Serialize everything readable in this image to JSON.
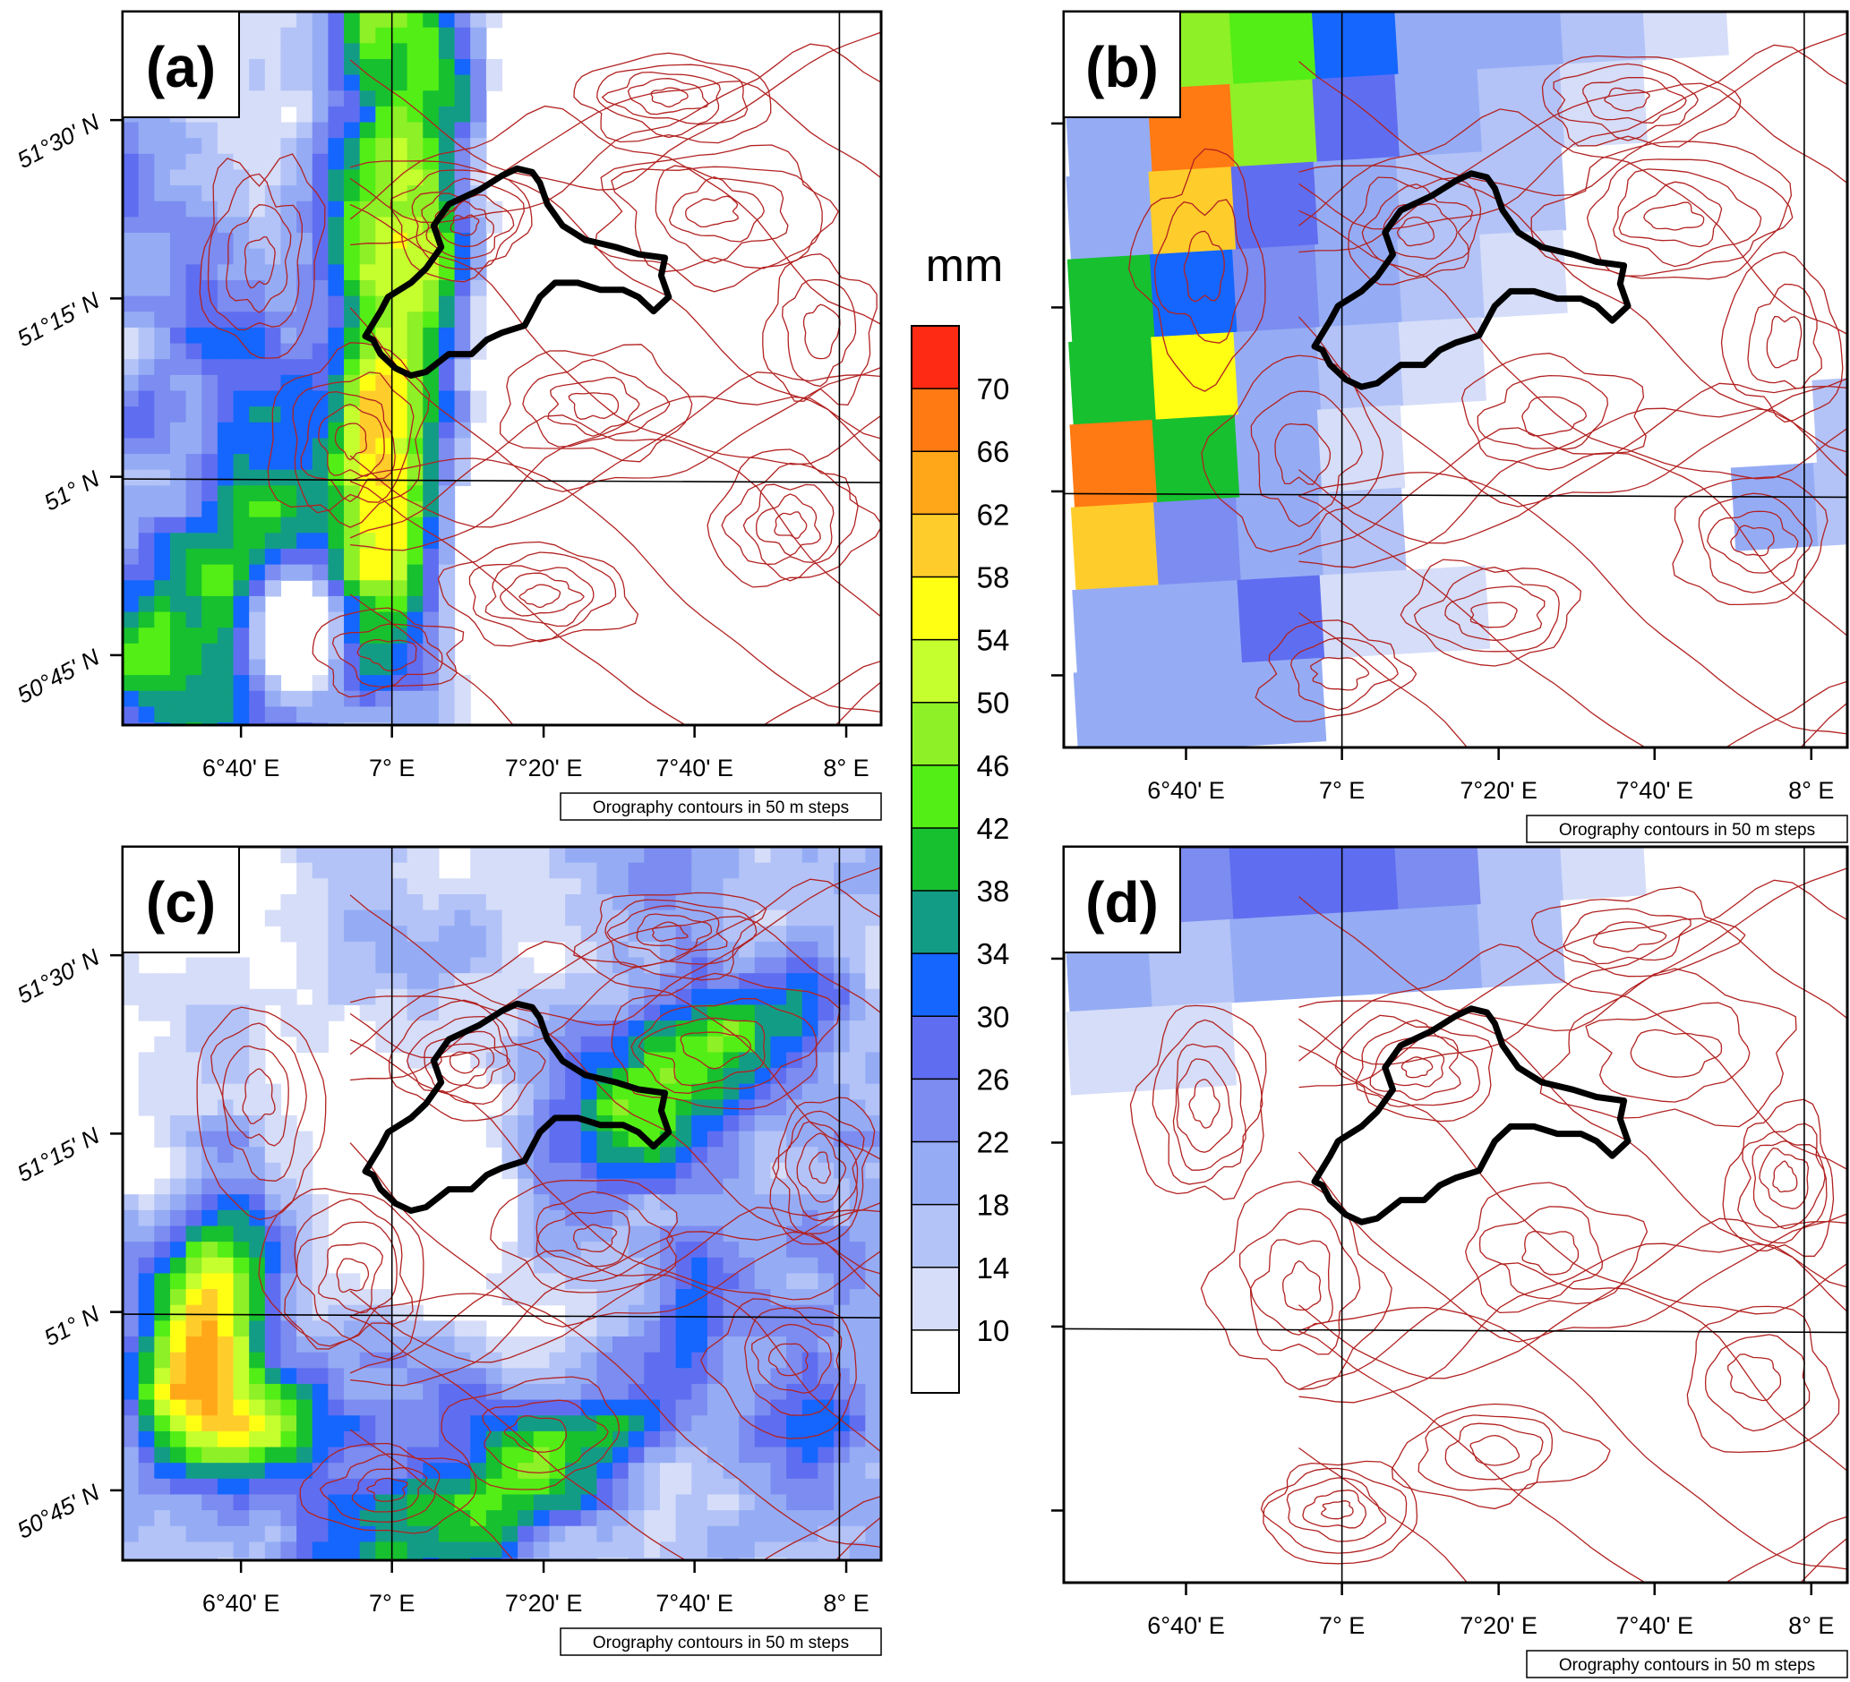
{
  "colorbar": {
    "unit": "mm",
    "levels": [
      "70",
      "66",
      "62",
      "58",
      "54",
      "50",
      "46",
      "42",
      "38",
      "34",
      "30",
      "26",
      "22",
      "18",
      "14",
      "10"
    ],
    "colors": [
      "#ff2a13",
      "#ff7a12",
      "#ffa719",
      "#ffcd2b",
      "#ffff14",
      "#c5ff2e",
      "#8ef026",
      "#53ee16",
      "#17c02f",
      "#139c85",
      "#1466ff",
      "#5f6ef0",
      "#7c8cf0",
      "#95acf5",
      "#b3c3f7",
      "#d5ddf8",
      "#ffffff"
    ]
  },
  "panels": [
    {
      "label": "(a)",
      "note": "Orography contours in 50 m steps"
    },
    {
      "label": "(b)",
      "note": "Orography contours in 50 m steps"
    },
    {
      "label": "(c)",
      "note": "Orography contours in 50 m steps"
    },
    {
      "label": "(d)",
      "note": "Orography contours in 50 m steps"
    }
  ],
  "axes": {
    "lon_ticks": [
      "6°40' E",
      "7° E",
      "7°20' E",
      "7°40' E",
      "8° E"
    ],
    "lat_ticks": [
      "51°30' N",
      "51°15' N",
      "51° N",
      "50°45' N"
    ]
  },
  "colors": {
    "contour": "#b22222",
    "catchment": "#000000",
    "gridline": "#000000"
  }
}
